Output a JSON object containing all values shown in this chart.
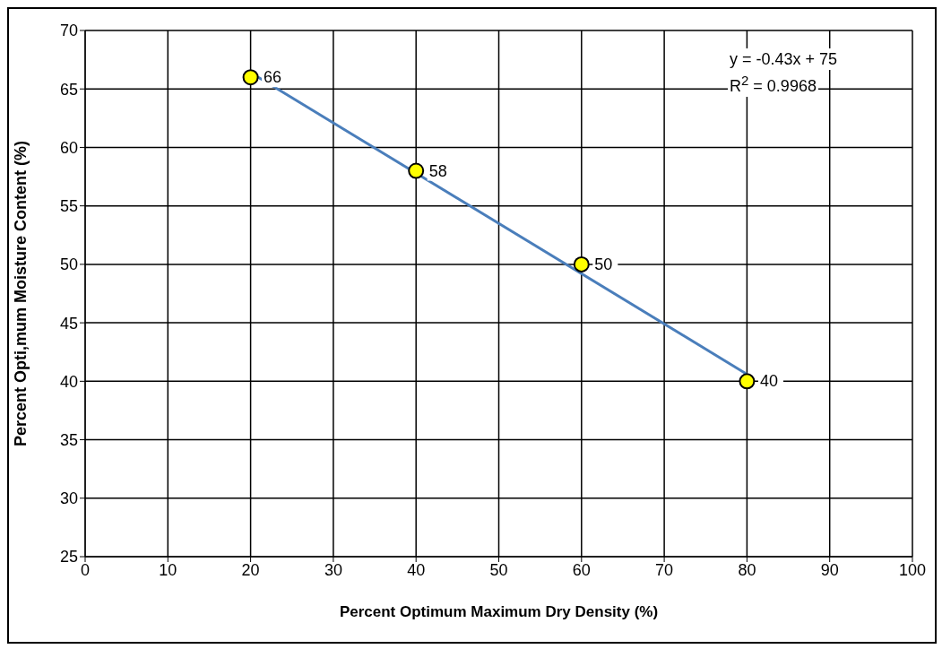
{
  "chart_data": {
    "type": "scatter",
    "xlabel": "Percent Optimum Maximum Dry Density (%)",
    "ylabel": "Percent Opti,mum Moisture Content (%)",
    "xlim": [
      0,
      100
    ],
    "xticks": [
      0,
      10,
      20,
      30,
      40,
      50,
      60,
      70,
      80,
      90,
      100
    ],
    "ylim": [
      25,
      70
    ],
    "yticks": [
      25,
      30,
      35,
      40,
      45,
      50,
      55,
      60,
      65,
      70
    ],
    "grid": true,
    "marker": "circle",
    "series": [
      {
        "color": "#ffff00",
        "x": [
          20,
          40,
          60,
          80
        ],
        "values": [
          66,
          58,
          50,
          40
        ],
        "value_labels": [
          "66",
          "58",
          "50",
          "40"
        ]
      },
      {
        "type": "line",
        "color": "#4a7ebb",
        "line_style": "solid",
        "marker": "none",
        "x": [
          20,
          80
        ],
        "values": [
          66.4,
          40.6
        ]
      }
    ],
    "annotations": [
      "y = -0.43x + 75",
      "R$^{2}$ = 0.9968"
    ]
  }
}
